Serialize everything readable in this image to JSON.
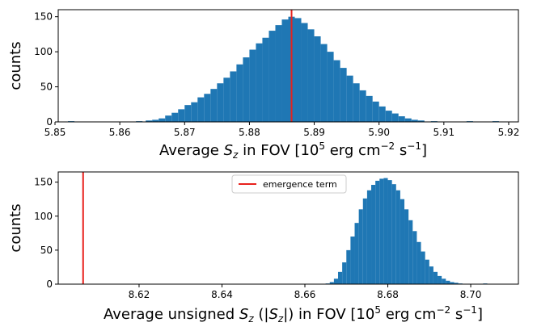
{
  "chart_data": [
    {
      "type": "bar",
      "subtype": "histogram",
      "title": "",
      "xlabel_prefix": "Average ",
      "xlabel_symbol": "S",
      "xlabel_subscript": "z",
      "xlabel_suffix": " in FOV [10",
      "xlabel_exp": "5",
      "xlabel_unit": " erg cm",
      "xlabel_exp2": "−2",
      "xlabel_unit2": " s",
      "xlabel_exp3": "−1",
      "xlabel_close": "]",
      "ylabel": "counts",
      "xlim": [
        5.8505,
        5.9215
      ],
      "ylim": [
        0,
        160
      ],
      "xticks": [
        5.85,
        5.86,
        5.87,
        5.88,
        5.89,
        5.9,
        5.91,
        5.92
      ],
      "xtick_labels": [
        "5.85",
        "5.86",
        "5.87",
        "5.88",
        "5.89",
        "5.90",
        "5.91",
        "5.92"
      ],
      "yticks": [
        0,
        50,
        100,
        150
      ],
      "ytick_labels": [
        "0",
        "50",
        "100",
        "150"
      ],
      "bar_color": "#1f77b4",
      "bins": [
        [
          5.8525,
          1
        ],
        [
          5.863,
          1
        ],
        [
          5.8645,
          2
        ],
        [
          5.8655,
          3
        ],
        [
          5.8665,
          5
        ],
        [
          5.8675,
          9
        ],
        [
          5.8685,
          13
        ],
        [
          5.8695,
          18
        ],
        [
          5.8705,
          24
        ],
        [
          5.8715,
          28
        ],
        [
          5.8725,
          35
        ],
        [
          5.8735,
          40
        ],
        [
          5.8745,
          47
        ],
        [
          5.8755,
          55
        ],
        [
          5.8765,
          63
        ],
        [
          5.8775,
          72
        ],
        [
          5.8785,
          82
        ],
        [
          5.8795,
          92
        ],
        [
          5.8805,
          103
        ],
        [
          5.8815,
          112
        ],
        [
          5.8825,
          120
        ],
        [
          5.8835,
          130
        ],
        [
          5.8845,
          138
        ],
        [
          5.8855,
          146
        ],
        [
          5.8865,
          150
        ],
        [
          5.8875,
          148
        ],
        [
          5.8885,
          141
        ],
        [
          5.8895,
          132
        ],
        [
          5.8905,
          122
        ],
        [
          5.8915,
          111
        ],
        [
          5.8925,
          100
        ],
        [
          5.8935,
          88
        ],
        [
          5.8945,
          77
        ],
        [
          5.8955,
          66
        ],
        [
          5.8965,
          55
        ],
        [
          5.8975,
          45
        ],
        [
          5.8985,
          37
        ],
        [
          5.8995,
          29
        ],
        [
          5.9005,
          22
        ],
        [
          5.9015,
          16
        ],
        [
          5.9025,
          12
        ],
        [
          5.9035,
          8
        ],
        [
          5.9045,
          5
        ],
        [
          5.9055,
          3
        ],
        [
          5.9065,
          2
        ],
        [
          5.9085,
          1
        ],
        [
          5.914,
          1
        ],
        [
          5.918,
          1
        ]
      ],
      "vline": {
        "x": 5.8865,
        "color": "#e8211c"
      }
    },
    {
      "type": "bar",
      "subtype": "histogram",
      "title": "",
      "xlabel_prefix": "Average unsigned ",
      "xlabel_symbol": "S",
      "xlabel_subscript": "z",
      "xlabel_mid": " (|",
      "xlabel_symbol2": "S",
      "xlabel_subscript2": "z",
      "xlabel_mid2": "|) in FOV [10",
      "xlabel_exp": "5",
      "xlabel_unit": " erg cm",
      "xlabel_exp2": "−2",
      "xlabel_unit2": " s",
      "xlabel_exp3": "−1",
      "xlabel_close": "]",
      "ylabel": "counts",
      "xlim": [
        8.6005,
        8.7115
      ],
      "ylim": [
        0,
        165
      ],
      "xticks": [
        8.62,
        8.64,
        8.66,
        8.68,
        8.7
      ],
      "xtick_labels": [
        "8.62",
        "8.64",
        "8.66",
        "8.68",
        "8.70"
      ],
      "yticks": [
        0,
        50,
        100,
        150
      ],
      "ytick_labels": [
        "0",
        "50",
        "100",
        "150"
      ],
      "bar_color": "#1f77b4",
      "bins": [
        [
          8.6655,
          1
        ],
        [
          8.6665,
          3
        ],
        [
          8.6675,
          8
        ],
        [
          8.6685,
          18
        ],
        [
          8.6695,
          32
        ],
        [
          8.6705,
          50
        ],
        [
          8.6715,
          70
        ],
        [
          8.6725,
          90
        ],
        [
          8.6735,
          110
        ],
        [
          8.6745,
          126
        ],
        [
          8.6755,
          138
        ],
        [
          8.6765,
          146
        ],
        [
          8.6775,
          152
        ],
        [
          8.6785,
          155
        ],
        [
          8.6795,
          156
        ],
        [
          8.6805,
          153
        ],
        [
          8.6815,
          147
        ],
        [
          8.6825,
          138
        ],
        [
          8.6835,
          125
        ],
        [
          8.6845,
          110
        ],
        [
          8.6855,
          94
        ],
        [
          8.6865,
          78
        ],
        [
          8.6875,
          62
        ],
        [
          8.6885,
          48
        ],
        [
          8.6895,
          36
        ],
        [
          8.6905,
          26
        ],
        [
          8.6915,
          18
        ],
        [
          8.6925,
          12
        ],
        [
          8.6935,
          8
        ],
        [
          8.6945,
          5
        ],
        [
          8.6955,
          3
        ],
        [
          8.6965,
          2
        ],
        [
          8.6975,
          1
        ],
        [
          8.7035,
          1
        ]
      ],
      "vline": {
        "x": 8.6065,
        "color": "#e8211c"
      },
      "legend": {
        "label": "emergence term",
        "position": "top-center",
        "color": "#e8211c"
      }
    }
  ]
}
